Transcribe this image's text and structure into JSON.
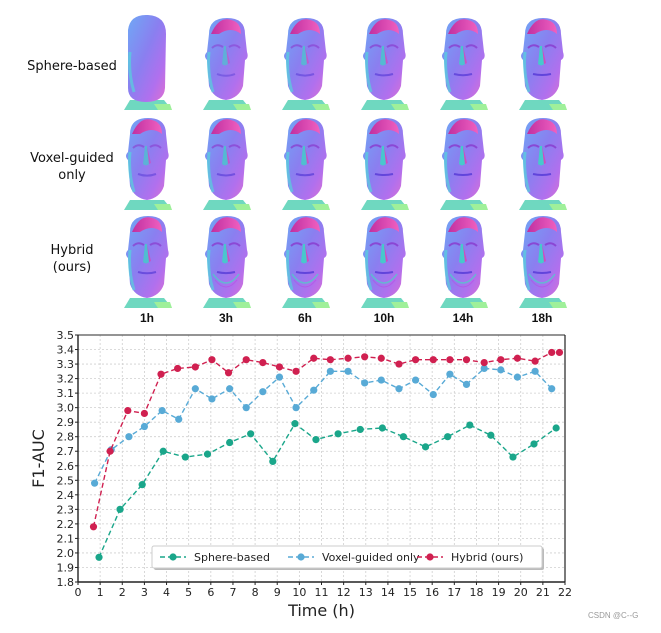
{
  "figure": {
    "row_labels": [
      "Sphere-based",
      "Voxel-guided\nonly",
      "Hybrid\n(ours)"
    ],
    "row_labels_lines": [
      [
        "Sphere-based"
      ],
      [
        "Voxel-guided",
        "only"
      ],
      [
        "Hybrid",
        "(ours)"
      ]
    ],
    "col_labels": [
      "1h",
      "3h",
      "6h",
      "10h",
      "14h",
      "18h"
    ]
  },
  "watermark": "CSDN @C--G",
  "chart_data": {
    "type": "line",
    "title": "",
    "xlabel": "Time (h)",
    "ylabel": "F1-AUC",
    "xlim": [
      0,
      22
    ],
    "ylim": [
      1.8,
      3.5
    ],
    "xticks": [
      0,
      1,
      2,
      3,
      4,
      5,
      6,
      7,
      8,
      9,
      10,
      11,
      12,
      13,
      14,
      15,
      16,
      17,
      18,
      19,
      20,
      21,
      22
    ],
    "yticks": [
      1.8,
      1.9,
      2.0,
      2.1,
      2.2,
      2.3,
      2.4,
      2.5,
      2.6,
      2.7,
      2.8,
      2.9,
      3.0,
      3.1,
      3.2,
      3.3,
      3.4,
      3.5
    ],
    "grid": true,
    "legend_position": "lower center",
    "series": [
      {
        "name": "Sphere-based",
        "color": "#1aa68a",
        "x": [
          0.95,
          1.9,
          2.9,
          3.85,
          4.85,
          5.85,
          6.85,
          7.8,
          8.8,
          9.8,
          10.75,
          11.75,
          12.75,
          13.75,
          14.7,
          15.7,
          16.7,
          17.7,
          18.65,
          19.65,
          20.6,
          21.6
        ],
        "values": [
          1.97,
          2.3,
          2.47,
          2.7,
          2.66,
          2.68,
          2.76,
          2.82,
          2.63,
          2.89,
          2.78,
          2.82,
          2.85,
          2.86,
          2.8,
          2.73,
          2.8,
          2.88,
          2.81,
          2.66,
          2.75,
          2.86
        ]
      },
      {
        "name": "Voxel-guided only",
        "color": "#58aad6",
        "x": [
          0.75,
          1.5,
          2.3,
          3.0,
          3.8,
          4.55,
          5.3,
          6.05,
          6.85,
          7.6,
          8.35,
          9.1,
          9.85,
          10.65,
          11.4,
          12.2,
          12.95,
          13.7,
          14.5,
          15.25,
          16.05,
          16.8,
          17.55,
          18.35,
          19.1,
          19.85,
          20.65,
          21.4
        ],
        "values": [
          2.48,
          2.71,
          2.8,
          2.87,
          2.98,
          2.92,
          3.13,
          3.06,
          3.13,
          3.0,
          3.11,
          3.21,
          3.0,
          3.12,
          3.25,
          3.25,
          3.17,
          3.19,
          3.13,
          3.19,
          3.09,
          3.23,
          3.16,
          3.27,
          3.26,
          3.21,
          3.25,
          3.13
        ]
      },
      {
        "name": "Hybrid (ours)",
        "color": "#d02050",
        "x": [
          0.7,
          1.45,
          2.25,
          3.0,
          3.75,
          4.5,
          5.3,
          6.05,
          6.8,
          7.6,
          8.35,
          9.1,
          9.85,
          10.65,
          11.4,
          12.2,
          12.95,
          13.7,
          14.5,
          15.25,
          16.05,
          16.8,
          17.55,
          18.35,
          19.1,
          19.85,
          20.65,
          21.4,
          21.75
        ],
        "values": [
          2.18,
          2.7,
          2.98,
          2.96,
          3.23,
          3.27,
          3.28,
          3.33,
          3.24,
          3.33,
          3.31,
          3.28,
          3.25,
          3.34,
          3.33,
          3.34,
          3.35,
          3.34,
          3.3,
          3.33,
          3.33,
          3.33,
          3.33,
          3.31,
          3.33,
          3.34,
          3.32,
          3.38,
          3.38
        ]
      }
    ]
  }
}
